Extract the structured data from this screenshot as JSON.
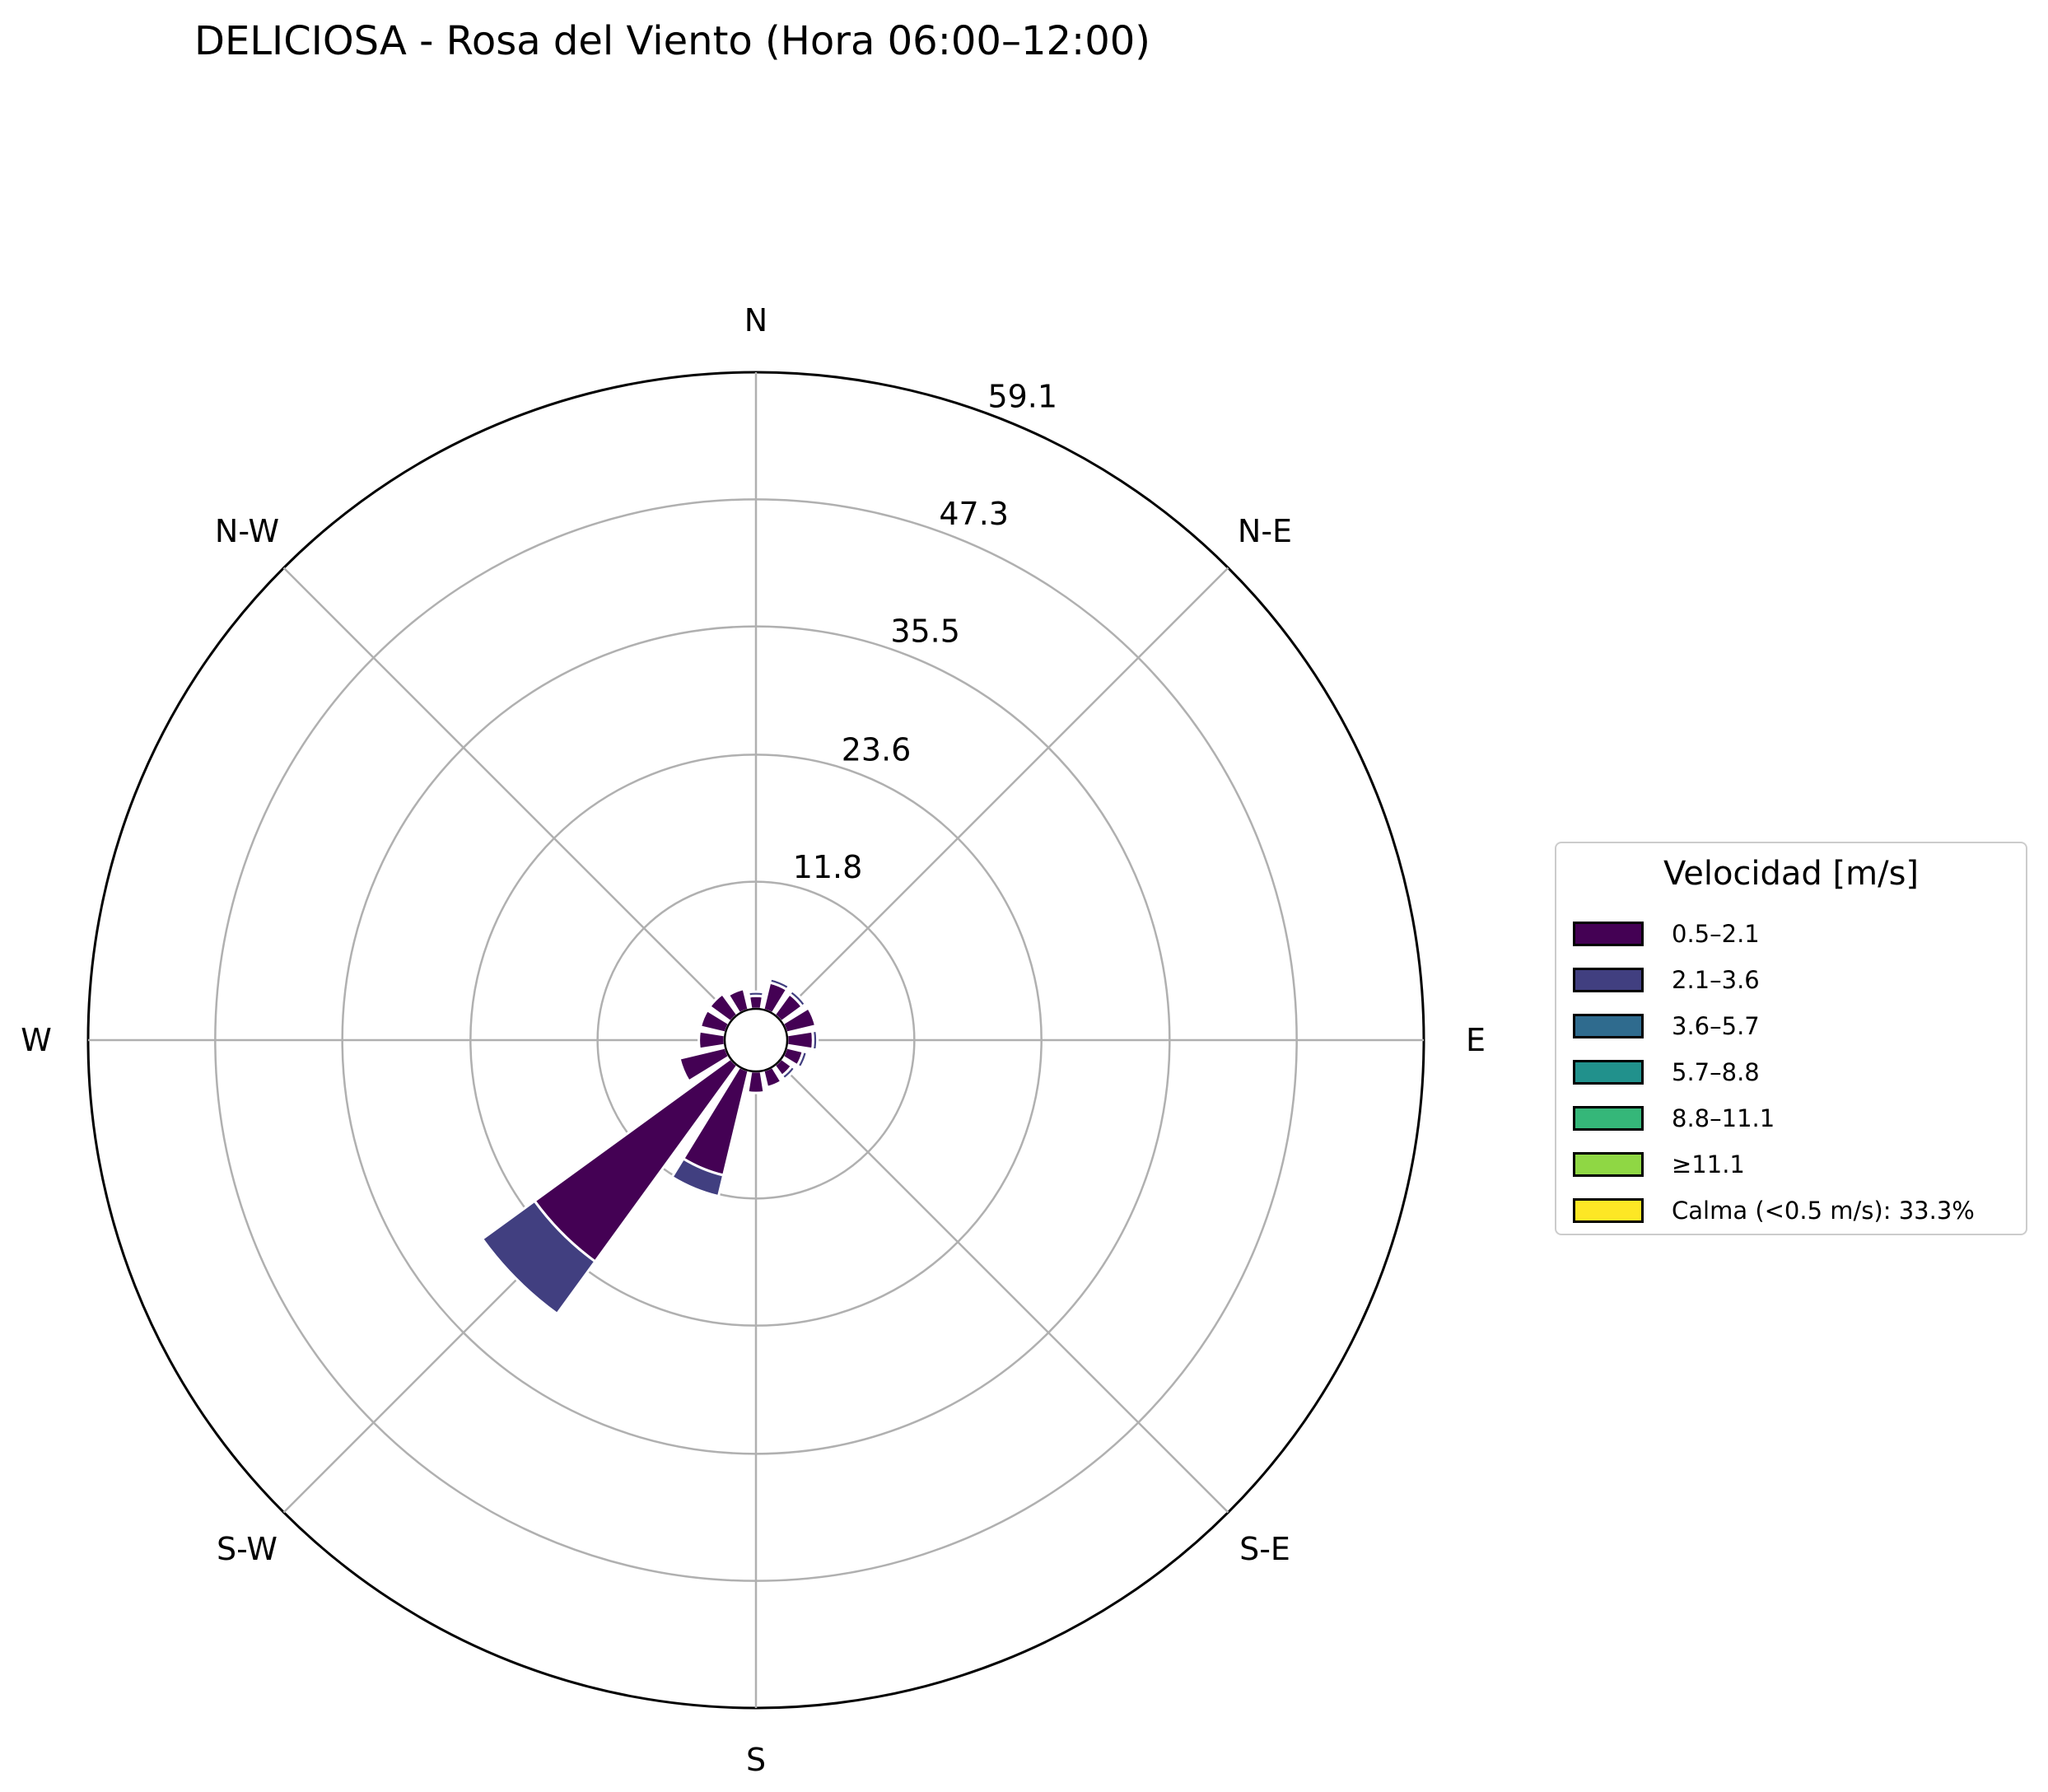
{
  "chart_data": {
    "type": "windrose",
    "title": "DELICIOSA - Rosa del Viento (Hora 06:00–12:00)",
    "directions": [
      "N",
      "N-E",
      "E",
      "S-E",
      "S",
      "S-W",
      "W",
      "N-W"
    ],
    "radial_ticks": [
      "11.8",
      "23.6",
      "35.5",
      "47.3",
      "59.1"
    ],
    "radial_tick_values": [
      11.8,
      23.6,
      35.5,
      47.3,
      59.1
    ],
    "rmax": 59.1,
    "sector_directions_deg": [
      0,
      22.5,
      45,
      67.5,
      90,
      112.5,
      135,
      157.5,
      180,
      202.5,
      225,
      247.5,
      270,
      292.5,
      315,
      337.5
    ],
    "legend": {
      "title": "Velocidad [m/s]",
      "entries": [
        "0.5–2.1",
        "2.1–3.6",
        "3.6–5.7",
        "5.7–8.8",
        "8.8–11.1",
        "≥11.1",
        "Calma (<0.5 m/s): 33.3%"
      ]
    },
    "series": [
      {
        "name": "0.5–2.1",
        "color": "#440154",
        "values": [
          1.2,
          2.6,
          2.4,
          2.8,
          2.4,
          1.6,
          1.2,
          1.6,
          2.0,
          10.0,
          22.5,
          4.4,
          2.4,
          2.4,
          2.4,
          2.0
        ]
      },
      {
        "name": "2.1–3.6",
        "color": "#413f80",
        "values": [
          0.4,
          0.4,
          0.4,
          0.0,
          0.4,
          0.4,
          0.4,
          0.0,
          0.0,
          2.0,
          6.0,
          0.0,
          0.0,
          0.0,
          0.0,
          0.0
        ]
      },
      {
        "name": "3.6–5.7",
        "color": "#2f6b8e",
        "values": [
          0,
          0,
          0,
          0,
          0,
          0,
          0,
          0,
          0,
          0,
          0,
          0,
          0,
          0,
          0,
          0
        ]
      },
      {
        "name": "5.7–8.8",
        "color": "#21918c",
        "values": [
          0,
          0,
          0,
          0,
          0,
          0,
          0,
          0,
          0,
          0,
          0,
          0,
          0,
          0,
          0,
          0
        ]
      },
      {
        "name": "8.8–11.1",
        "color": "#35b779",
        "values": [
          0,
          0,
          0,
          0,
          0,
          0,
          0,
          0,
          0,
          0,
          0,
          0,
          0,
          0,
          0,
          0
        ]
      },
      {
        "name": "≥11.1",
        "color": "#8fd744",
        "values": [
          0,
          0,
          0,
          0,
          0,
          0,
          0,
          0,
          0,
          0,
          0,
          0,
          0,
          0,
          0,
          0
        ]
      },
      {
        "name": "Calma (<0.5 m/s): 33.3%",
        "color": "#fde725",
        "values": []
      }
    ],
    "calm_percent": 33.3,
    "grid": true
  }
}
